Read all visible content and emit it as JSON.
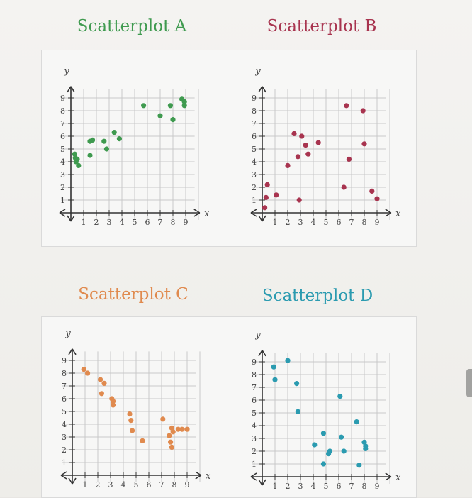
{
  "chart_data": [
    {
      "type": "scatter",
      "title": "Scatterplot A",
      "color": "#3f9a4f",
      "xlabel": "x",
      "ylabel": "y",
      "xlim": [
        0,
        9
      ],
      "ylim": [
        0,
        9
      ],
      "x_ticks": [
        "1",
        "2",
        "3",
        "4",
        "5",
        "6",
        "7",
        "8",
        "9"
      ],
      "y_ticks": [
        "1",
        "2",
        "3",
        "4",
        "5",
        "6",
        "7",
        "8",
        "9"
      ],
      "points": [
        [
          0.3,
          4.6
        ],
        [
          0.35,
          4.3
        ],
        [
          0.4,
          4.0
        ],
        [
          0.5,
          4.2
        ],
        [
          0.6,
          3.7
        ],
        [
          1.5,
          4.5
        ],
        [
          1.5,
          5.6
        ],
        [
          1.7,
          5.7
        ],
        [
          2.6,
          5.6
        ],
        [
          2.8,
          5.0
        ],
        [
          3.4,
          6.3
        ],
        [
          3.8,
          5.8
        ],
        [
          5.7,
          8.4
        ],
        [
          7.0,
          7.6
        ],
        [
          7.8,
          8.4
        ],
        [
          8.0,
          7.3
        ],
        [
          8.7,
          8.9
        ],
        [
          8.9,
          8.7
        ],
        [
          8.9,
          8.4
        ]
      ]
    },
    {
      "type": "scatter",
      "title": "Scatterplot B",
      "color": "#a8344f",
      "xlabel": "x",
      "ylabel": "y",
      "xlim": [
        0,
        9
      ],
      "ylim": [
        0,
        9
      ],
      "x_ticks": [
        "1",
        "2",
        "3",
        "4",
        "5",
        "6",
        "7",
        "8",
        "9"
      ],
      "y_ticks": [
        "1",
        "2",
        "3",
        "4",
        "5",
        "6",
        "7",
        "8",
        "9"
      ],
      "points": [
        [
          0.2,
          0.4
        ],
        [
          0.3,
          1.2
        ],
        [
          0.4,
          2.2
        ],
        [
          1.1,
          1.4
        ],
        [
          2.0,
          3.7
        ],
        [
          2.5,
          6.2
        ],
        [
          2.8,
          4.4
        ],
        [
          2.9,
          1.0
        ],
        [
          3.1,
          6.0
        ],
        [
          3.4,
          5.3
        ],
        [
          3.6,
          4.6
        ],
        [
          4.4,
          5.5
        ],
        [
          6.6,
          8.4
        ],
        [
          6.4,
          2.0
        ],
        [
          6.8,
          4.2
        ],
        [
          7.9,
          8.0
        ],
        [
          8.0,
          5.4
        ],
        [
          8.6,
          1.7
        ],
        [
          9.0,
          1.1
        ]
      ]
    },
    {
      "type": "scatter",
      "title": "Scatterplot C",
      "color": "#e08a4e",
      "xlabel": "x",
      "ylabel": "y",
      "xlim": [
        0,
        9
      ],
      "ylim": [
        0,
        9
      ],
      "x_ticks": [
        "1",
        "2",
        "3",
        "4",
        "5",
        "6",
        "7",
        "8",
        "9"
      ],
      "y_ticks": [
        "1",
        "2",
        "3",
        "4",
        "5",
        "6",
        "7",
        "8",
        "9"
      ],
      "points": [
        [
          0.9,
          8.3
        ],
        [
          1.2,
          8.0
        ],
        [
          2.2,
          7.5
        ],
        [
          2.5,
          7.2
        ],
        [
          2.3,
          6.4
        ],
        [
          3.1,
          6.0
        ],
        [
          3.2,
          5.8
        ],
        [
          3.2,
          5.5
        ],
        [
          4.5,
          4.8
        ],
        [
          4.6,
          4.3
        ],
        [
          4.7,
          3.5
        ],
        [
          5.5,
          2.7
        ],
        [
          7.1,
          4.4
        ],
        [
          7.6,
          3.1
        ],
        [
          7.7,
          2.6
        ],
        [
          7.8,
          2.2
        ],
        [
          7.8,
          3.7
        ],
        [
          7.9,
          3.4
        ],
        [
          8.3,
          3.6
        ],
        [
          8.6,
          3.6
        ],
        [
          9.0,
          3.6
        ]
      ]
    },
    {
      "type": "scatter",
      "title": "Scatterplot D",
      "color": "#2b9bb0",
      "xlabel": "x",
      "ylabel": "y",
      "xlim": [
        0,
        9
      ],
      "ylim": [
        0,
        9
      ],
      "x_ticks": [
        "1",
        "2",
        "3",
        "4",
        "5",
        "6",
        "7",
        "8",
        "9"
      ],
      "y_ticks": [
        "1",
        "2",
        "3",
        "4",
        "5",
        "6",
        "7",
        "8",
        "9"
      ],
      "points": [
        [
          0.9,
          8.6
        ],
        [
          1.0,
          7.6
        ],
        [
          2.0,
          9.1
        ],
        [
          2.7,
          7.3
        ],
        [
          2.8,
          5.1
        ],
        [
          4.1,
          2.5
        ],
        [
          4.8,
          1.0
        ],
        [
          4.8,
          3.4
        ],
        [
          5.2,
          1.8
        ],
        [
          5.3,
          2.0
        ],
        [
          6.1,
          6.3
        ],
        [
          6.2,
          3.1
        ],
        [
          6.4,
          2.0
        ],
        [
          7.4,
          4.3
        ],
        [
          7.6,
          0.9
        ],
        [
          8.0,
          2.7
        ],
        [
          8.1,
          2.4
        ],
        [
          8.1,
          2.2
        ]
      ]
    }
  ]
}
